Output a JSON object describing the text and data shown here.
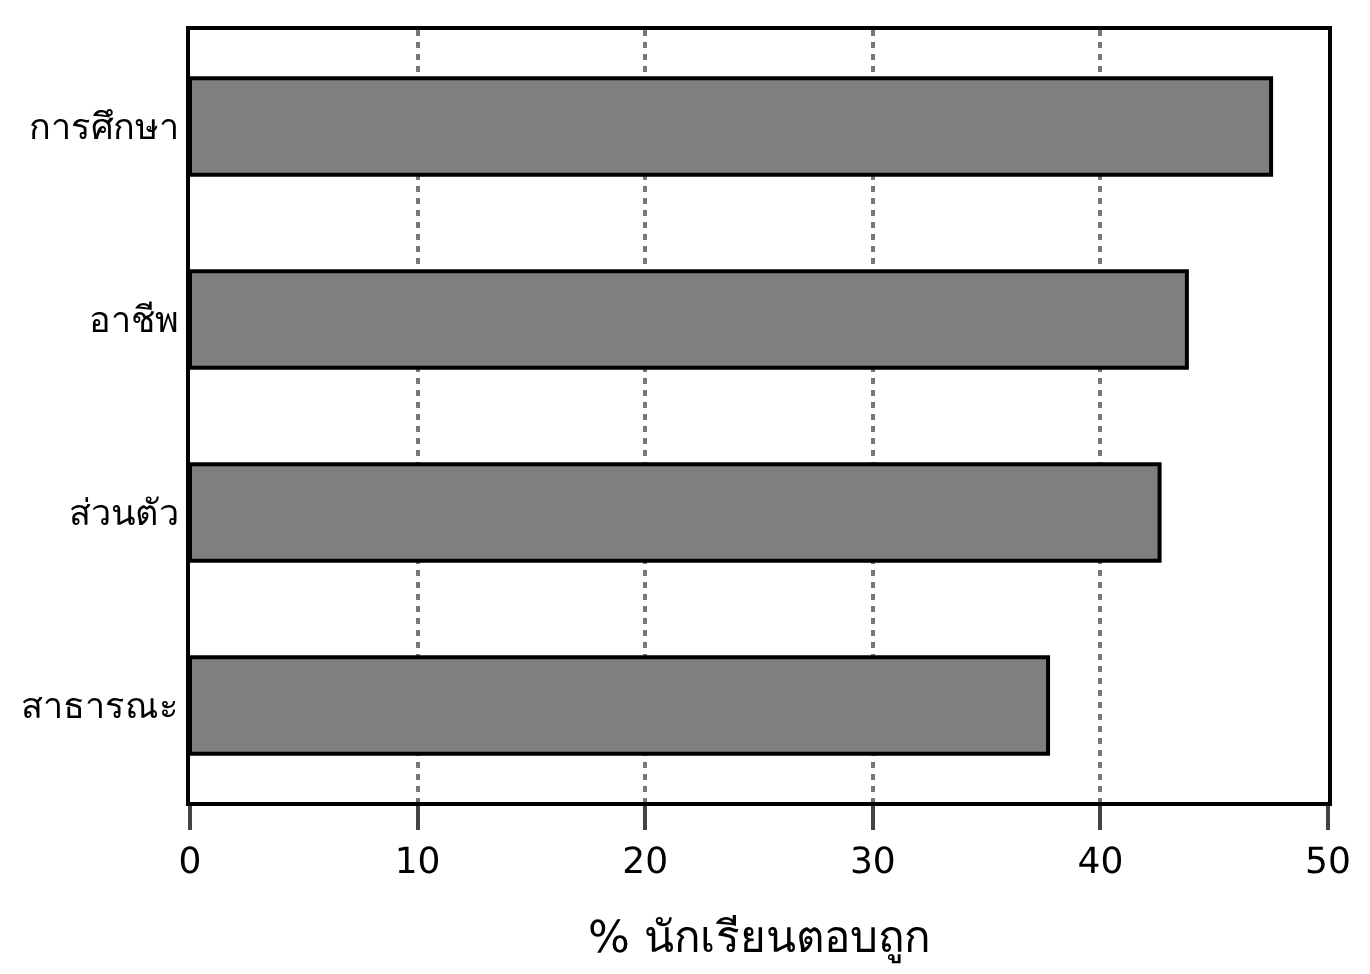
{
  "chart_data": {
    "type": "bar",
    "orientation": "horizontal",
    "xlabel": "% นักเรียนตอบถูก",
    "categories": [
      "การศึกษา",
      "อาชีพ",
      "ส่วนตัว",
      "สาธารณะ"
    ],
    "values": [
      47.5,
      43.8,
      42.6,
      37.7
    ],
    "color": "#7f7f7f",
    "xlim": [
      0,
      50
    ],
    "xticks": [
      0,
      10,
      20,
      30,
      40,
      50
    ],
    "grid": "x",
    "line_style": "dotted"
  }
}
